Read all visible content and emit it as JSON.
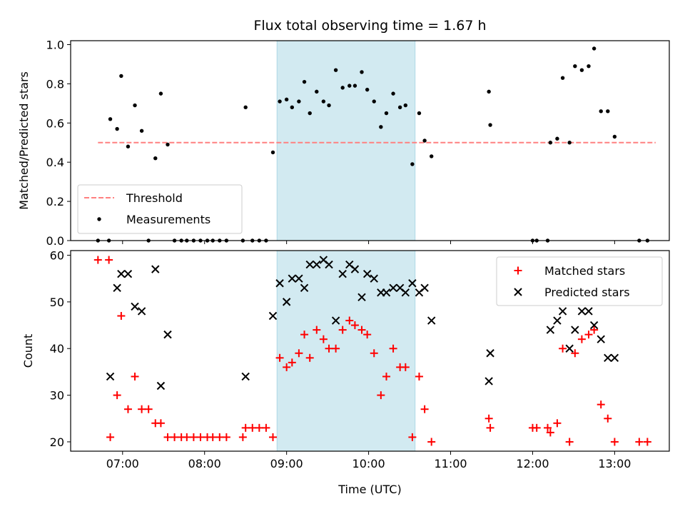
{
  "chart_data": [
    {
      "type": "scatter",
      "title": "Flux total observing time = 1.67 h",
      "xlabel": "",
      "ylabel": "Matched/Predicted stars",
      "ylim": [
        0.0,
        1.02
      ],
      "yticks": [
        "0.0",
        "0.2",
        "0.4",
        "0.6",
        "0.8",
        "1.0"
      ],
      "ytick_values": [
        0.0,
        0.2,
        0.4,
        0.6,
        0.8,
        1.0
      ],
      "xlim": [
        "06:22",
        "13:40"
      ],
      "highlight_span": [
        "08:53",
        "10:34"
      ],
      "highlight_color": "#add8e6",
      "threshold": {
        "name": "Threshold",
        "value": 0.5,
        "x_range": [
          "06:42",
          "13:30"
        ],
        "color": "#ff8080",
        "style": "dashed"
      },
      "series": [
        {
          "name": "Measurements",
          "marker": "dot",
          "color": "#000000",
          "points": [
            [
              "06:42",
              0.0
            ],
            [
              "06:50",
              0.0
            ],
            [
              "06:51",
              0.62
            ],
            [
              "06:56",
              0.57
            ],
            [
              "06:59",
              0.84
            ],
            [
              "07:04",
              0.48
            ],
            [
              "07:09",
              0.69
            ],
            [
              "07:14",
              0.56
            ],
            [
              "07:19",
              0.0
            ],
            [
              "07:24",
              0.42
            ],
            [
              "07:28",
              0.75
            ],
            [
              "07:33",
              0.49
            ],
            [
              "07:38",
              0.0
            ],
            [
              "07:43",
              0.0
            ],
            [
              "07:47",
              0.0
            ],
            [
              "07:52",
              0.0
            ],
            [
              "07:57",
              0.0
            ],
            [
              "08:02",
              0.0
            ],
            [
              "08:06",
              0.0
            ],
            [
              "08:11",
              0.0
            ],
            [
              "08:16",
              0.0
            ],
            [
              "08:28",
              0.0
            ],
            [
              "08:30",
              0.68
            ],
            [
              "08:35",
              0.0
            ],
            [
              "08:40",
              0.0
            ],
            [
              "08:45",
              0.0
            ],
            [
              "08:50",
              0.45
            ],
            [
              "08:55",
              0.71
            ],
            [
              "09:00",
              0.72
            ],
            [
              "09:04",
              0.68
            ],
            [
              "09:09",
              0.71
            ],
            [
              "09:13",
              0.81
            ],
            [
              "09:17",
              0.65
            ],
            [
              "09:22",
              0.76
            ],
            [
              "09:27",
              0.71
            ],
            [
              "09:31",
              0.69
            ],
            [
              "09:36",
              0.87
            ],
            [
              "09:41",
              0.78
            ],
            [
              "09:46",
              0.79
            ],
            [
              "09:50",
              0.79
            ],
            [
              "09:55",
              0.86
            ],
            [
              "09:59",
              0.77
            ],
            [
              "10:04",
              0.71
            ],
            [
              "10:09",
              0.58
            ],
            [
              "10:13",
              0.65
            ],
            [
              "10:18",
              0.75
            ],
            [
              "10:23",
              0.68
            ],
            [
              "10:27",
              0.69
            ],
            [
              "10:32",
              0.39
            ],
            [
              "10:37",
              0.65
            ],
            [
              "10:41",
              0.51
            ],
            [
              "10:46",
              0.43
            ],
            [
              "11:28",
              0.76
            ],
            [
              "11:29",
              0.59
            ],
            [
              "12:00",
              0.0
            ],
            [
              "12:03",
              0.0
            ],
            [
              "12:11",
              0.0
            ],
            [
              "12:13",
              0.5
            ],
            [
              "12:18",
              0.52
            ],
            [
              "12:22",
              0.83
            ],
            [
              "12:27",
              0.5
            ],
            [
              "12:31",
              0.89
            ],
            [
              "12:36",
              0.87
            ],
            [
              "12:41",
              0.89
            ],
            [
              "12:45",
              0.98
            ],
            [
              "12:50",
              0.66
            ],
            [
              "12:55",
              0.66
            ],
            [
              "13:00",
              0.53
            ],
            [
              "13:18",
              0.0
            ],
            [
              "13:24",
              0.0
            ]
          ]
        }
      ],
      "legend": {
        "position": "lower-left",
        "entries": [
          "Threshold",
          "Measurements"
        ]
      },
      "grid": false
    },
    {
      "type": "scatter",
      "title": "",
      "xlabel": "Time (UTC)",
      "ylabel": "Count",
      "ylim": [
        18.0,
        61.0
      ],
      "yticks": [
        "20",
        "30",
        "40",
        "50",
        "60"
      ],
      "ytick_values": [
        20,
        30,
        40,
        50,
        60
      ],
      "xticks": [
        "07:00",
        "08:00",
        "09:00",
        "10:00",
        "11:00",
        "12:00",
        "13:00"
      ],
      "xtick_values": [
        "07:00",
        "08:00",
        "09:00",
        "10:00",
        "11:00",
        "12:00",
        "13:00"
      ],
      "xlim": [
        "06:22",
        "13:40"
      ],
      "highlight_span": [
        "08:53",
        "10:34"
      ],
      "highlight_color": "#add8e6",
      "series": [
        {
          "name": "Matched stars",
          "marker": "plus",
          "color": "#ff0000",
          "points": [
            [
              "06:42",
              59
            ],
            [
              "06:50",
              59
            ],
            [
              "06:51",
              21
            ],
            [
              "06:56",
              30
            ],
            [
              "06:59",
              47
            ],
            [
              "07:04",
              27
            ],
            [
              "07:09",
              34
            ],
            [
              "07:14",
              27
            ],
            [
              "07:19",
              27
            ],
            [
              "07:24",
              24
            ],
            [
              "07:28",
              24
            ],
            [
              "07:33",
              21
            ],
            [
              "07:38",
              21
            ],
            [
              "07:43",
              21
            ],
            [
              "07:47",
              21
            ],
            [
              "07:52",
              21
            ],
            [
              "07:57",
              21
            ],
            [
              "08:02",
              21
            ],
            [
              "08:06",
              21
            ],
            [
              "08:11",
              21
            ],
            [
              "08:16",
              21
            ],
            [
              "08:28",
              21
            ],
            [
              "08:30",
              23
            ],
            [
              "08:35",
              23
            ],
            [
              "08:40",
              23
            ],
            [
              "08:45",
              23
            ],
            [
              "08:50",
              21
            ],
            [
              "08:55",
              38
            ],
            [
              "09:00",
              36
            ],
            [
              "09:04",
              37
            ],
            [
              "09:09",
              39
            ],
            [
              "09:13",
              43
            ],
            [
              "09:17",
              38
            ],
            [
              "09:22",
              44
            ],
            [
              "09:27",
              42
            ],
            [
              "09:31",
              40
            ],
            [
              "09:36",
              40
            ],
            [
              "09:41",
              44
            ],
            [
              "09:46",
              46
            ],
            [
              "09:50",
              45
            ],
            [
              "09:55",
              44
            ],
            [
              "09:59",
              43
            ],
            [
              "10:04",
              39
            ],
            [
              "10:09",
              30
            ],
            [
              "10:13",
              34
            ],
            [
              "10:18",
              40
            ],
            [
              "10:23",
              36
            ],
            [
              "10:27",
              36
            ],
            [
              "10:32",
              21
            ],
            [
              "10:37",
              34
            ],
            [
              "10:41",
              27
            ],
            [
              "10:46",
              20
            ],
            [
              "11:28",
              25
            ],
            [
              "11:29",
              23
            ],
            [
              "12:00",
              23
            ],
            [
              "12:03",
              23
            ],
            [
              "12:11",
              23
            ],
            [
              "12:13",
              22
            ],
            [
              "12:18",
              24
            ],
            [
              "12:22",
              40
            ],
            [
              "12:27",
              20
            ],
            [
              "12:31",
              39
            ],
            [
              "12:36",
              42
            ],
            [
              "12:41",
              43
            ],
            [
              "12:45",
              44
            ],
            [
              "12:50",
              28
            ],
            [
              "12:55",
              25
            ],
            [
              "13:00",
              20
            ],
            [
              "13:18",
              20
            ],
            [
              "13:24",
              20
            ]
          ]
        },
        {
          "name": "Predicted stars",
          "marker": "x",
          "color": "#000000",
          "points": [
            [
              "06:51",
              34
            ],
            [
              "06:56",
              53
            ],
            [
              "06:59",
              56
            ],
            [
              "07:04",
              56
            ],
            [
              "07:09",
              49
            ],
            [
              "07:14",
              48
            ],
            [
              "07:24",
              57
            ],
            [
              "07:28",
              32
            ],
            [
              "07:33",
              43
            ],
            [
              "08:30",
              34
            ],
            [
              "08:50",
              47
            ],
            [
              "08:55",
              54
            ],
            [
              "09:00",
              50
            ],
            [
              "09:04",
              55
            ],
            [
              "09:09",
              55
            ],
            [
              "09:13",
              53
            ],
            [
              "09:17",
              58
            ],
            [
              "09:22",
              58
            ],
            [
              "09:27",
              59
            ],
            [
              "09:31",
              58
            ],
            [
              "09:36",
              46
            ],
            [
              "09:41",
              56
            ],
            [
              "09:46",
              58
            ],
            [
              "09:50",
              57
            ],
            [
              "09:55",
              51
            ],
            [
              "09:59",
              56
            ],
            [
              "10:04",
              55
            ],
            [
              "10:09",
              52
            ],
            [
              "10:13",
              52
            ],
            [
              "10:18",
              53
            ],
            [
              "10:23",
              53
            ],
            [
              "10:27",
              52
            ],
            [
              "10:32",
              54
            ],
            [
              "10:37",
              52
            ],
            [
              "10:41",
              53
            ],
            [
              "10:46",
              46
            ],
            [
              "11:28",
              33
            ],
            [
              "11:29",
              39
            ],
            [
              "12:13",
              44
            ],
            [
              "12:18",
              46
            ],
            [
              "12:22",
              48
            ],
            [
              "12:27",
              40
            ],
            [
              "12:31",
              44
            ],
            [
              "12:36",
              48
            ],
            [
              "12:41",
              48
            ],
            [
              "12:45",
              45
            ],
            [
              "12:50",
              42
            ],
            [
              "12:55",
              38
            ],
            [
              "13:00",
              38
            ]
          ]
        }
      ],
      "legend": {
        "position": "upper-right",
        "entries": [
          "Matched stars",
          "Predicted stars"
        ]
      },
      "grid": false
    }
  ]
}
